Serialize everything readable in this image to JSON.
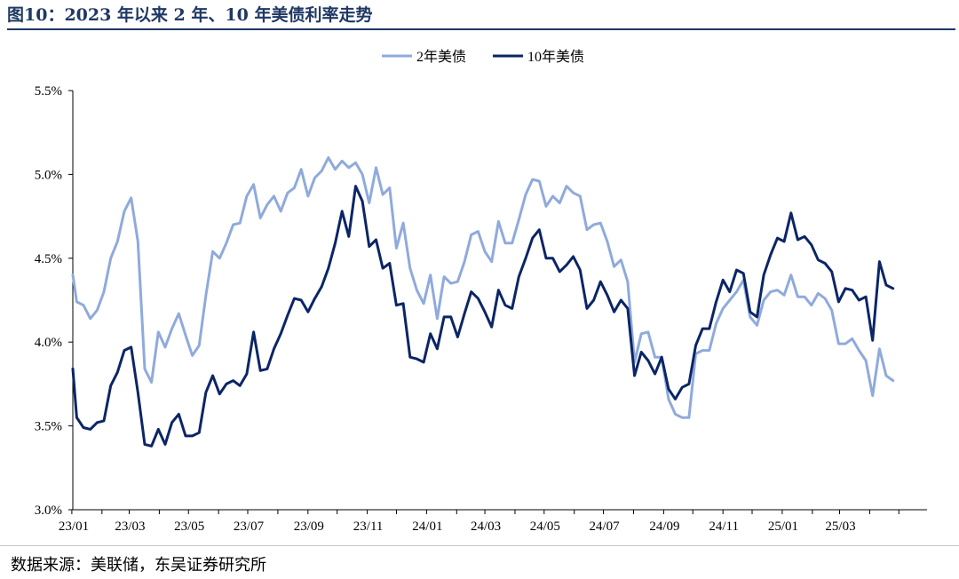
{
  "figure": {
    "title": "图10：2023 年以来 2 年、10 年美债利率走势",
    "source": "数据来源：美联储，东吴证券研究所"
  },
  "chart_data": {
    "type": "line",
    "x_tick_labels": [
      "23/01",
      "23/03",
      "23/05",
      "23/07",
      "23/09",
      "23/11",
      "24/01",
      "24/03",
      "24/05",
      "24/07",
      "24/09",
      "24/11",
      "25/01",
      "25/03"
    ],
    "y_tick_labels": [
      "3.0%",
      "3.5%",
      "4.0%",
      "4.5%",
      "5.0%",
      "5.5%"
    ],
    "ylim": [
      3.0,
      5.5
    ],
    "x_range": [
      "2023-01-02",
      "2025-05-30"
    ],
    "legend_position": "top-center",
    "grid": false,
    "series": [
      {
        "name": "2年美债",
        "color": "#8faadc",
        "points": [
          [
            "2023-01-02",
            4.4
          ],
          [
            "2023-01-06",
            4.24
          ],
          [
            "2023-01-13",
            4.22
          ],
          [
            "2023-01-20",
            4.14
          ],
          [
            "2023-01-27",
            4.19
          ],
          [
            "2023-02-03",
            4.3
          ],
          [
            "2023-02-10",
            4.5
          ],
          [
            "2023-02-17",
            4.6
          ],
          [
            "2023-02-24",
            4.78
          ],
          [
            "2023-03-03",
            4.86
          ],
          [
            "2023-03-10",
            4.6
          ],
          [
            "2023-03-17",
            3.84
          ],
          [
            "2023-03-24",
            3.76
          ],
          [
            "2023-03-31",
            4.06
          ],
          [
            "2023-04-07",
            3.97
          ],
          [
            "2023-04-14",
            4.08
          ],
          [
            "2023-04-21",
            4.17
          ],
          [
            "2023-04-28",
            4.04
          ],
          [
            "2023-05-05",
            3.92
          ],
          [
            "2023-05-12",
            3.98
          ],
          [
            "2023-05-19",
            4.28
          ],
          [
            "2023-05-26",
            4.54
          ],
          [
            "2023-06-02",
            4.5
          ],
          [
            "2023-06-09",
            4.59
          ],
          [
            "2023-06-16",
            4.7
          ],
          [
            "2023-06-23",
            4.71
          ],
          [
            "2023-06-30",
            4.87
          ],
          [
            "2023-07-07",
            4.94
          ],
          [
            "2023-07-14",
            4.74
          ],
          [
            "2023-07-21",
            4.82
          ],
          [
            "2023-07-28",
            4.87
          ],
          [
            "2023-08-04",
            4.78
          ],
          [
            "2023-08-11",
            4.89
          ],
          [
            "2023-08-18",
            4.92
          ],
          [
            "2023-08-25",
            5.03
          ],
          [
            "2023-09-01",
            4.87
          ],
          [
            "2023-09-08",
            4.98
          ],
          [
            "2023-09-15",
            5.02
          ],
          [
            "2023-09-22",
            5.1
          ],
          [
            "2023-09-29",
            5.03
          ],
          [
            "2023-10-06",
            5.08
          ],
          [
            "2023-10-13",
            5.04
          ],
          [
            "2023-10-20",
            5.07
          ],
          [
            "2023-10-27",
            5.0
          ],
          [
            "2023-11-03",
            4.83
          ],
          [
            "2023-11-10",
            5.04
          ],
          [
            "2023-11-17",
            4.88
          ],
          [
            "2023-11-24",
            4.92
          ],
          [
            "2023-12-01",
            4.56
          ],
          [
            "2023-12-08",
            4.71
          ],
          [
            "2023-12-15",
            4.44
          ],
          [
            "2023-12-22",
            4.31
          ],
          [
            "2023-12-29",
            4.23
          ],
          [
            "2024-01-05",
            4.4
          ],
          [
            "2024-01-12",
            4.14
          ],
          [
            "2024-01-19",
            4.39
          ],
          [
            "2024-01-26",
            4.35
          ],
          [
            "2024-02-02",
            4.36
          ],
          [
            "2024-02-09",
            4.48
          ],
          [
            "2024-02-16",
            4.64
          ],
          [
            "2024-02-23",
            4.66
          ],
          [
            "2024-03-01",
            4.54
          ],
          [
            "2024-03-08",
            4.48
          ],
          [
            "2024-03-15",
            4.72
          ],
          [
            "2024-03-22",
            4.59
          ],
          [
            "2024-03-29",
            4.59
          ],
          [
            "2024-04-05",
            4.73
          ],
          [
            "2024-04-12",
            4.88
          ],
          [
            "2024-04-19",
            4.97
          ],
          [
            "2024-04-26",
            4.96
          ],
          [
            "2024-05-03",
            4.81
          ],
          [
            "2024-05-10",
            4.87
          ],
          [
            "2024-05-17",
            4.83
          ],
          [
            "2024-05-24",
            4.93
          ],
          [
            "2024-05-31",
            4.89
          ],
          [
            "2024-06-07",
            4.87
          ],
          [
            "2024-06-14",
            4.67
          ],
          [
            "2024-06-21",
            4.7
          ],
          [
            "2024-06-28",
            4.71
          ],
          [
            "2024-07-05",
            4.6
          ],
          [
            "2024-07-12",
            4.45
          ],
          [
            "2024-07-19",
            4.49
          ],
          [
            "2024-07-26",
            4.36
          ],
          [
            "2024-08-02",
            3.88
          ],
          [
            "2024-08-09",
            4.05
          ],
          [
            "2024-08-16",
            4.06
          ],
          [
            "2024-08-23",
            3.91
          ],
          [
            "2024-08-30",
            3.91
          ],
          [
            "2024-09-06",
            3.66
          ],
          [
            "2024-09-13",
            3.57
          ],
          [
            "2024-09-20",
            3.55
          ],
          [
            "2024-09-27",
            3.55
          ],
          [
            "2024-10-04",
            3.93
          ],
          [
            "2024-10-11",
            3.95
          ],
          [
            "2024-10-18",
            3.95
          ],
          [
            "2024-10-25",
            4.11
          ],
          [
            "2024-11-01",
            4.2
          ],
          [
            "2024-11-08",
            4.25
          ],
          [
            "2024-11-15",
            4.3
          ],
          [
            "2024-11-22",
            4.37
          ],
          [
            "2024-11-29",
            4.15
          ],
          [
            "2024-12-06",
            4.1
          ],
          [
            "2024-12-13",
            4.25
          ],
          [
            "2024-12-20",
            4.3
          ],
          [
            "2024-12-27",
            4.31
          ],
          [
            "2025-01-03",
            4.28
          ],
          [
            "2025-01-10",
            4.4
          ],
          [
            "2025-01-17",
            4.27
          ],
          [
            "2025-01-24",
            4.27
          ],
          [
            "2025-01-31",
            4.22
          ],
          [
            "2025-02-07",
            4.29
          ],
          [
            "2025-02-14",
            4.26
          ],
          [
            "2025-02-21",
            4.19
          ],
          [
            "2025-02-28",
            3.99
          ],
          [
            "2025-03-07",
            3.99
          ],
          [
            "2025-03-14",
            4.02
          ],
          [
            "2025-03-21",
            3.95
          ],
          [
            "2025-03-28",
            3.89
          ],
          [
            "2025-04-04",
            3.68
          ],
          [
            "2025-04-11",
            3.96
          ],
          [
            "2025-04-18",
            3.8
          ],
          [
            "2025-04-25",
            3.77
          ]
        ]
      },
      {
        "name": "10年美债",
        "color": "#0b2566",
        "points": [
          [
            "2023-01-02",
            3.84
          ],
          [
            "2023-01-06",
            3.55
          ],
          [
            "2023-01-13",
            3.49
          ],
          [
            "2023-01-20",
            3.48
          ],
          [
            "2023-01-27",
            3.52
          ],
          [
            "2023-02-03",
            3.53
          ],
          [
            "2023-02-10",
            3.74
          ],
          [
            "2023-02-17",
            3.82
          ],
          [
            "2023-02-24",
            3.95
          ],
          [
            "2023-03-03",
            3.97
          ],
          [
            "2023-03-10",
            3.7
          ],
          [
            "2023-03-17",
            3.39
          ],
          [
            "2023-03-24",
            3.38
          ],
          [
            "2023-03-31",
            3.48
          ],
          [
            "2023-04-07",
            3.39
          ],
          [
            "2023-04-14",
            3.52
          ],
          [
            "2023-04-21",
            3.57
          ],
          [
            "2023-04-28",
            3.44
          ],
          [
            "2023-05-05",
            3.44
          ],
          [
            "2023-05-12",
            3.46
          ],
          [
            "2023-05-19",
            3.7
          ],
          [
            "2023-05-26",
            3.8
          ],
          [
            "2023-06-02",
            3.69
          ],
          [
            "2023-06-09",
            3.75
          ],
          [
            "2023-06-16",
            3.77
          ],
          [
            "2023-06-23",
            3.74
          ],
          [
            "2023-06-30",
            3.81
          ],
          [
            "2023-07-07",
            4.06
          ],
          [
            "2023-07-14",
            3.83
          ],
          [
            "2023-07-21",
            3.84
          ],
          [
            "2023-07-28",
            3.96
          ],
          [
            "2023-08-04",
            4.05
          ],
          [
            "2023-08-11",
            4.16
          ],
          [
            "2023-08-18",
            4.26
          ],
          [
            "2023-08-25",
            4.25
          ],
          [
            "2023-09-01",
            4.18
          ],
          [
            "2023-09-08",
            4.26
          ],
          [
            "2023-09-15",
            4.33
          ],
          [
            "2023-09-22",
            4.44
          ],
          [
            "2023-09-29",
            4.59
          ],
          [
            "2023-10-06",
            4.78
          ],
          [
            "2023-10-13",
            4.63
          ],
          [
            "2023-10-20",
            4.93
          ],
          [
            "2023-10-27",
            4.84
          ],
          [
            "2023-11-03",
            4.57
          ],
          [
            "2023-11-10",
            4.61
          ],
          [
            "2023-11-17",
            4.44
          ],
          [
            "2023-11-24",
            4.47
          ],
          [
            "2023-12-01",
            4.22
          ],
          [
            "2023-12-08",
            4.23
          ],
          [
            "2023-12-15",
            3.91
          ],
          [
            "2023-12-22",
            3.9
          ],
          [
            "2023-12-29",
            3.88
          ],
          [
            "2024-01-05",
            4.05
          ],
          [
            "2024-01-12",
            3.96
          ],
          [
            "2024-01-19",
            4.15
          ],
          [
            "2024-01-26",
            4.15
          ],
          [
            "2024-02-02",
            4.03
          ],
          [
            "2024-02-09",
            4.17
          ],
          [
            "2024-02-16",
            4.3
          ],
          [
            "2024-02-23",
            4.26
          ],
          [
            "2024-03-01",
            4.18
          ],
          [
            "2024-03-08",
            4.09
          ],
          [
            "2024-03-15",
            4.31
          ],
          [
            "2024-03-22",
            4.22
          ],
          [
            "2024-03-29",
            4.2
          ],
          [
            "2024-04-05",
            4.39
          ],
          [
            "2024-04-12",
            4.5
          ],
          [
            "2024-04-19",
            4.62
          ],
          [
            "2024-04-26",
            4.67
          ],
          [
            "2024-05-03",
            4.5
          ],
          [
            "2024-05-10",
            4.5
          ],
          [
            "2024-05-17",
            4.42
          ],
          [
            "2024-05-24",
            4.46
          ],
          [
            "2024-05-31",
            4.51
          ],
          [
            "2024-06-07",
            4.43
          ],
          [
            "2024-06-14",
            4.2
          ],
          [
            "2024-06-21",
            4.25
          ],
          [
            "2024-06-28",
            4.36
          ],
          [
            "2024-07-05",
            4.28
          ],
          [
            "2024-07-12",
            4.18
          ],
          [
            "2024-07-19",
            4.25
          ],
          [
            "2024-07-26",
            4.2
          ],
          [
            "2024-08-02",
            3.8
          ],
          [
            "2024-08-09",
            3.94
          ],
          [
            "2024-08-16",
            3.89
          ],
          [
            "2024-08-23",
            3.81
          ],
          [
            "2024-08-30",
            3.91
          ],
          [
            "2024-09-06",
            3.72
          ],
          [
            "2024-09-13",
            3.66
          ],
          [
            "2024-09-20",
            3.73
          ],
          [
            "2024-09-27",
            3.75
          ],
          [
            "2024-10-04",
            3.98
          ],
          [
            "2024-10-11",
            4.08
          ],
          [
            "2024-10-18",
            4.08
          ],
          [
            "2024-10-25",
            4.24
          ],
          [
            "2024-11-01",
            4.37
          ],
          [
            "2024-11-08",
            4.3
          ],
          [
            "2024-11-15",
            4.43
          ],
          [
            "2024-11-22",
            4.41
          ],
          [
            "2024-11-29",
            4.18
          ],
          [
            "2024-12-06",
            4.15
          ],
          [
            "2024-12-13",
            4.4
          ],
          [
            "2024-12-20",
            4.52
          ],
          [
            "2024-12-27",
            4.62
          ],
          [
            "2025-01-03",
            4.6
          ],
          [
            "2025-01-10",
            4.77
          ],
          [
            "2025-01-17",
            4.61
          ],
          [
            "2025-01-24",
            4.63
          ],
          [
            "2025-01-31",
            4.58
          ],
          [
            "2025-02-07",
            4.49
          ],
          [
            "2025-02-14",
            4.47
          ],
          [
            "2025-02-21",
            4.42
          ],
          [
            "2025-02-28",
            4.24
          ],
          [
            "2025-03-07",
            4.32
          ],
          [
            "2025-03-14",
            4.31
          ],
          [
            "2025-03-21",
            4.25
          ],
          [
            "2025-03-28",
            4.27
          ],
          [
            "2025-04-04",
            4.01
          ],
          [
            "2025-04-11",
            4.48
          ],
          [
            "2025-04-18",
            4.34
          ],
          [
            "2025-04-25",
            4.32
          ]
        ]
      }
    ]
  }
}
